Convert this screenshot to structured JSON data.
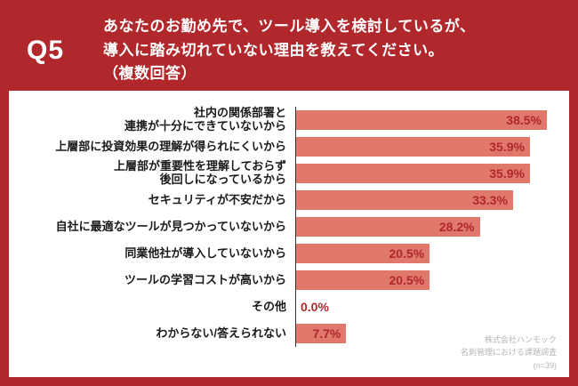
{
  "header": {
    "q_label": "Q5",
    "question_lines": [
      "あなたのお勤め先で、ツール導入を検討しているが、",
      "導入に踏み切れていない理由を教えてください。",
      "（複数回答）"
    ]
  },
  "chart_data": {
    "type": "bar",
    "orientation": "horizontal",
    "title": "",
    "categories": [
      "社内の関係部署と\n連携が十分にできていないから",
      "上層部に投資効果の理解が得られにくいから",
      "上層部が重要性を理解しておらず\n後回しになっているから",
      "セキュリティが不安だから",
      "自社に最適なツールが見つかっていないから",
      "同業他社が導入していないから",
      "ツールの学習コストが高いから",
      "その他",
      "わからない/答えられない"
    ],
    "values": [
      38.5,
      35.9,
      35.9,
      33.3,
      28.2,
      20.5,
      20.5,
      0.0,
      7.7
    ],
    "value_labels": [
      "38.5%",
      "35.9%",
      "35.9%",
      "33.3%",
      "28.2%",
      "20.5%",
      "20.5%",
      "0.0%",
      "7.7%"
    ],
    "xlim": [
      0,
      40
    ],
    "grid": false,
    "legend": false,
    "bar_color": "#e0786c",
    "value_label_color": "#b0272c"
  },
  "footnote": {
    "lines": [
      "株式会社ハンモック",
      "名刺管理における課題調査",
      "(n=39)"
    ]
  },
  "colors": {
    "frame_red": "#b0272c",
    "chart_bg": "#ffffff",
    "category_text": "#1a1a1a",
    "footnote_gray": "#b5b5b5",
    "axis": "#333333"
  }
}
